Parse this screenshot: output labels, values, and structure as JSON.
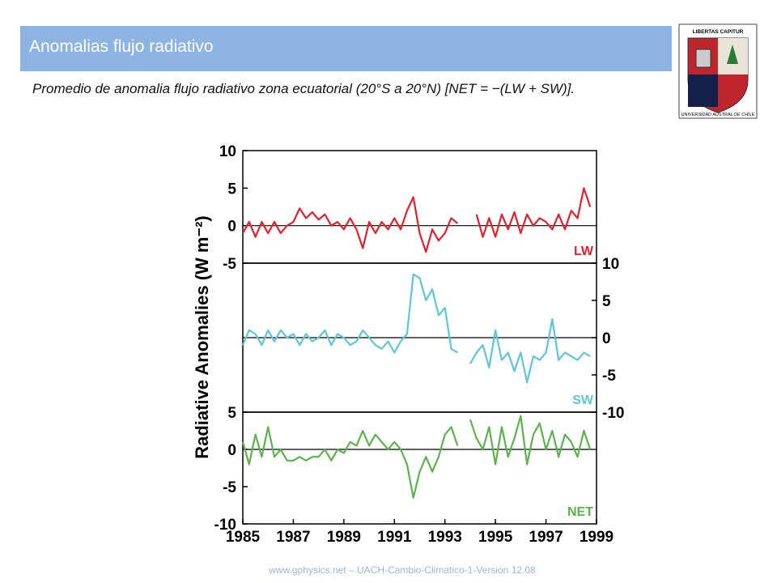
{
  "slide": {
    "title": "Anomalias flujo radiativo",
    "subtitle": "Promedio de anomalia flujo radiativo zona ecuatorial (20°S a 20°N) [NET = −(LW + SW)].",
    "footer": "www.gphysics.net – UACH-Cambio-Climatico-1-Version 12.08",
    "logo_top": "LIBERTAS CAPITUR",
    "logo_bottom": "UNIVERSIDAD AUSTRAL DE CHILE"
  },
  "chart_data": [
    {
      "type": "line",
      "ylabel": "Radiative Anomalies (W m⁻²)",
      "y_axis_side": "left",
      "xlim": [
        1985,
        1999
      ],
      "ylim": [
        -5,
        10
      ],
      "yticks": [
        -5,
        0,
        5,
        10
      ],
      "x": [
        1985,
        1985.25,
        1985.5,
        1985.75,
        1986,
        1986.25,
        1986.5,
        1986.75,
        1987,
        1987.25,
        1987.5,
        1987.75,
        1988,
        1988.25,
        1988.5,
        1988.75,
        1989,
        1989.25,
        1989.5,
        1989.75,
        1990,
        1990.25,
        1990.5,
        1990.75,
        1991,
        1991.25,
        1991.5,
        1991.75,
        1992,
        1992.25,
        1992.5,
        1992.75,
        1993,
        1993.25,
        1993.5,
        1993.75,
        1994,
        1994.25,
        1994.5,
        1994.75,
        1995,
        1995.25,
        1995.5,
        1995.75,
        1996,
        1996.25,
        1996.5,
        1996.75,
        1997,
        1997.25,
        1997.5,
        1997.75,
        1998,
        1998.25,
        1998.5,
        1998.75
      ],
      "series": [
        {
          "name": "LW",
          "color": "#e3202b",
          "values": [
            -1,
            0.5,
            -1.5,
            0.5,
            -1,
            0.5,
            -1,
            0,
            0.5,
            2.3,
            1,
            1.8,
            0.8,
            1.5,
            0,
            0.5,
            -0.5,
            1,
            -0.5,
            -3,
            0.5,
            -1,
            0.5,
            -0.5,
            1,
            -0.5,
            2,
            3.8,
            -1,
            -3.5,
            -0.5,
            -2,
            -1,
            1,
            0.3,
            null,
            null,
            1.5,
            -1.5,
            1,
            -1.5,
            1.5,
            -0.5,
            1.8,
            -1,
            1.5,
            0,
            1,
            0.5,
            -0.5,
            1.5,
            -0.5,
            2,
            1,
            5,
            2.5
          ]
        }
      ]
    },
    {
      "type": "line",
      "y_axis_side": "right",
      "xlim": [
        1985,
        1999
      ],
      "ylim": [
        -10,
        10
      ],
      "yticks": [
        -10,
        -5,
        0,
        5,
        10
      ],
      "x": [
        1985,
        1985.25,
        1985.5,
        1985.75,
        1986,
        1986.25,
        1986.5,
        1986.75,
        1987,
        1987.25,
        1987.5,
        1987.75,
        1988,
        1988.25,
        1988.5,
        1988.75,
        1989,
        1989.25,
        1989.5,
        1989.75,
        1990,
        1990.25,
        1990.5,
        1990.75,
        1991,
        1991.25,
        1991.5,
        1991.75,
        1992,
        1992.25,
        1992.5,
        1992.75,
        1993,
        1993.25,
        1993.5,
        1993.75,
        1994,
        1994.25,
        1994.5,
        1994.75,
        1995,
        1995.25,
        1995.5,
        1995.75,
        1996,
        1996.25,
        1996.5,
        1996.75,
        1997,
        1997.25,
        1997.5,
        1997.75,
        1998,
        1998.25,
        1998.5,
        1998.75
      ],
      "series": [
        {
          "name": "SW",
          "color": "#5cc6da",
          "values": [
            -1,
            1,
            0.5,
            -1,
            1,
            -0.5,
            1,
            0,
            0.5,
            -1,
            0.5,
            -0.5,
            0,
            1,
            -1,
            0.5,
            0,
            -1,
            -0.5,
            1,
            0,
            -1,
            -1.5,
            -0.5,
            -2,
            -0.5,
            0.5,
            8.5,
            8,
            5,
            6.5,
            3,
            4,
            -1.5,
            -2,
            null,
            -3.5,
            -2,
            -1,
            -4,
            1,
            -3,
            -2,
            -4.5,
            -2,
            -6,
            -2.5,
            -3,
            -2,
            2.5,
            -3,
            -2,
            -2.5,
            -3,
            -2,
            -2.5
          ]
        }
      ]
    },
    {
      "type": "line",
      "y_axis_side": "left",
      "xlim": [
        1985,
        1999
      ],
      "ylim": [
        -10,
        5
      ],
      "yticks": [
        -10,
        -5,
        0,
        5
      ],
      "xticks": [
        1985,
        1987,
        1989,
        1991,
        1993,
        1995,
        1997,
        1999
      ],
      "x": [
        1985,
        1985.25,
        1985.5,
        1985.75,
        1986,
        1986.25,
        1986.5,
        1986.75,
        1987,
        1987.25,
        1987.5,
        1987.75,
        1988,
        1988.25,
        1988.5,
        1988.75,
        1989,
        1989.25,
        1989.5,
        1989.75,
        1990,
        1990.25,
        1990.5,
        1990.75,
        1991,
        1991.25,
        1991.5,
        1991.75,
        1992,
        1992.25,
        1992.5,
        1992.75,
        1993,
        1993.25,
        1993.5,
        1993.75,
        1994,
        1994.25,
        1994.5,
        1994.75,
        1995,
        1995.25,
        1995.5,
        1995.75,
        1996,
        1996.25,
        1996.5,
        1996.75,
        1997,
        1997.25,
        1997.5,
        1997.75,
        1998,
        1998.25,
        1998.5,
        1998.75
      ],
      "series": [
        {
          "name": "NET",
          "color": "#5ab44a",
          "values": [
            1,
            -2,
            2,
            -1,
            3,
            -1,
            0,
            -1.5,
            -1.5,
            -1,
            -1.5,
            -1,
            -1,
            0,
            -1.5,
            0,
            -0.5,
            1,
            0.5,
            2.5,
            0.5,
            2,
            1,
            0,
            1,
            0,
            -2,
            -6.5,
            -3,
            -1,
            -3,
            -1,
            2,
            3,
            0.5,
            null,
            4,
            1.5,
            0,
            3,
            -2,
            3,
            -1,
            1.5,
            4.5,
            -2,
            2,
            3.5,
            0,
            2.5,
            -1,
            2,
            1,
            -1,
            2.5,
            0
          ]
        }
      ]
    }
  ]
}
